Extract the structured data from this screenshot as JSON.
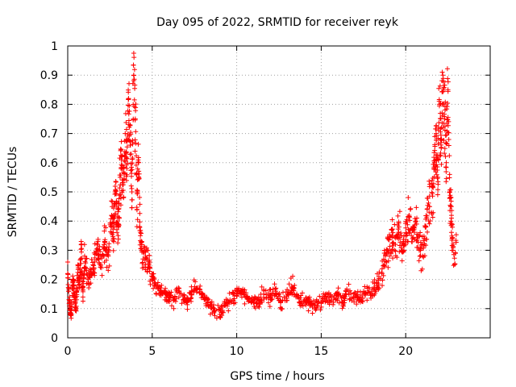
{
  "chart_data": {
    "type": "scatter",
    "title": "Day 095 of 2022, SRMTID for receiver reyk",
    "xlabel": "GPS time / hours",
    "ylabel": "SRMTID / TECUs",
    "xlim": [
      0,
      25
    ],
    "ylim": [
      0,
      1
    ],
    "xticks": [
      0,
      5,
      10,
      15,
      20
    ],
    "yticks": [
      0,
      0.1,
      0.2,
      0.3,
      0.4,
      0.5,
      0.6,
      0.7,
      0.8,
      0.9,
      1
    ],
    "xtick_labels": [
      "0",
      "5",
      "10",
      "15",
      "20"
    ],
    "ytick_labels": [
      "0",
      "0.1",
      "0.2",
      "0.3",
      "0.4",
      "0.5",
      "0.6",
      "0.7",
      "0.8",
      "0.9",
      "1"
    ],
    "grid": true,
    "marker": "+",
    "marker_color": "#ff0000",
    "series": [
      {
        "name": "SRMTID",
        "x": [
          0.0,
          0.1,
          0.2,
          0.3,
          0.4,
          0.5,
          0.6,
          0.7,
          0.8,
          0.9,
          1.0,
          1.2,
          1.4,
          1.6,
          1.8,
          2.0,
          2.2,
          2.4,
          2.6,
          2.7,
          2.8,
          2.9,
          3.0,
          3.1,
          3.2,
          3.3,
          3.4,
          3.5,
          3.6,
          3.7,
          3.8,
          3.9,
          4.0,
          4.1,
          4.2,
          4.3,
          4.4,
          4.6,
          4.8,
          5.0,
          5.2,
          5.5,
          5.8,
          6.0,
          6.3,
          6.6,
          7.0,
          7.3,
          7.6,
          8.0,
          8.3,
          8.6,
          9.0,
          9.3,
          9.6,
          10.0,
          10.3,
          10.6,
          11.0,
          11.3,
          11.6,
          12.0,
          12.3,
          12.6,
          13.0,
          13.3,
          13.6,
          14.0,
          14.3,
          14.6,
          15.0,
          15.3,
          15.6,
          16.0,
          16.3,
          16.6,
          17.0,
          17.3,
          17.6,
          18.0,
          18.3,
          18.6,
          18.8,
          19.0,
          19.2,
          19.4,
          19.6,
          19.8,
          20.0,
          20.2,
          20.4,
          20.6,
          20.8,
          21.0,
          21.2,
          21.4,
          21.6,
          21.7,
          21.8,
          21.9,
          22.0,
          22.1,
          22.2,
          22.3,
          22.4,
          22.5,
          22.6,
          22.7,
          22.8
        ],
        "y": [
          0.22,
          0.12,
          0.08,
          0.2,
          0.15,
          0.1,
          0.25,
          0.18,
          0.32,
          0.14,
          0.28,
          0.2,
          0.22,
          0.26,
          0.3,
          0.24,
          0.33,
          0.28,
          0.42,
          0.36,
          0.5,
          0.45,
          0.38,
          0.55,
          0.62,
          0.48,
          0.7,
          0.58,
          0.82,
          0.66,
          0.5,
          0.9,
          0.75,
          0.44,
          0.6,
          0.35,
          0.3,
          0.28,
          0.25,
          0.2,
          0.18,
          0.16,
          0.15,
          0.14,
          0.13,
          0.16,
          0.12,
          0.15,
          0.17,
          0.14,
          0.12,
          0.1,
          0.08,
          0.11,
          0.13,
          0.15,
          0.16,
          0.14,
          0.12,
          0.13,
          0.15,
          0.14,
          0.16,
          0.12,
          0.15,
          0.17,
          0.14,
          0.13,
          0.12,
          0.11,
          0.12,
          0.14,
          0.13,
          0.15,
          0.12,
          0.16,
          0.14,
          0.13,
          0.15,
          0.16,
          0.18,
          0.22,
          0.28,
          0.3,
          0.35,
          0.32,
          0.38,
          0.3,
          0.36,
          0.42,
          0.34,
          0.4,
          0.3,
          0.28,
          0.38,
          0.45,
          0.52,
          0.6,
          0.7,
          0.55,
          0.8,
          0.65,
          0.9,
          0.75,
          0.6,
          0.85,
          0.5,
          0.45,
          0.3
        ]
      }
    ]
  }
}
